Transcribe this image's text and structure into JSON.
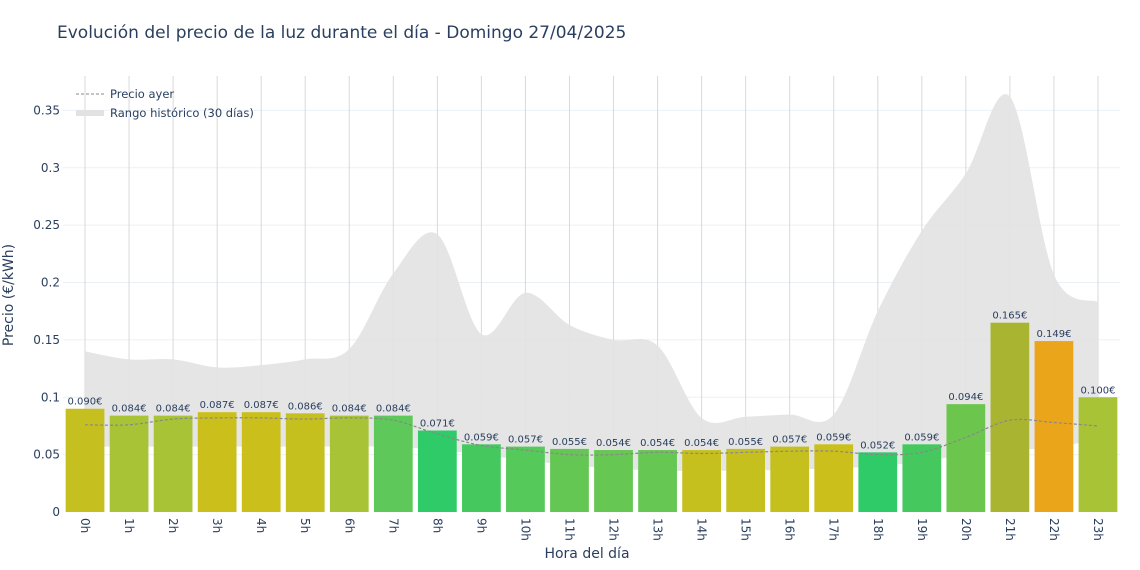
{
  "chart_data": {
    "type": "bar",
    "title": "Evolución del precio de la luz durante el día - Domingo 27/04/2025",
    "xlabel": "Hora del día",
    "ylabel": "Precio (€/kWh)",
    "ylim": [
      0,
      0.38
    ],
    "yticks": [
      0,
      0.05,
      0.1,
      0.15,
      0.2,
      0.25,
      0.3,
      0.35
    ],
    "ytick_labels": [
      "0",
      "0.05",
      "0.1",
      "0.15",
      "0.2",
      "0.25",
      "0.3",
      "0.35"
    ],
    "grid": true,
    "legend_position": "top-left",
    "categories": [
      "0h",
      "1h",
      "2h",
      "3h",
      "4h",
      "5h",
      "6h",
      "7h",
      "8h",
      "9h",
      "10h",
      "11h",
      "12h",
      "13h",
      "14h",
      "15h",
      "16h",
      "17h",
      "18h",
      "19h",
      "20h",
      "21h",
      "22h",
      "23h"
    ],
    "values": [
      0.09,
      0.084,
      0.084,
      0.087,
      0.087,
      0.086,
      0.084,
      0.084,
      0.071,
      0.059,
      0.057,
      0.055,
      0.054,
      0.054,
      0.054,
      0.055,
      0.057,
      0.059,
      0.052,
      0.059,
      0.094,
      0.165,
      0.149,
      0.1
    ],
    "value_labels": [
      "0.090€",
      "0.084€",
      "0.084€",
      "0.087€",
      "0.087€",
      "0.086€",
      "0.084€",
      "0.084€",
      "0.071€",
      "0.059€",
      "0.057€",
      "0.055€",
      "0.054€",
      "0.054€",
      "0.054€",
      "0.055€",
      "0.057€",
      "0.059€",
      "0.052€",
      "0.059€",
      "0.094€",
      "0.165€",
      "0.149€",
      "0.100€"
    ],
    "bar_colors": [
      "#c5c01f",
      "#a9c336",
      "#a9c336",
      "#cbbf1b",
      "#cbbf1b",
      "#c6c01f",
      "#a9c336",
      "#5ec95a",
      "#2fcb68",
      "#45c95f",
      "#55c959",
      "#64c753",
      "#66c752",
      "#66c752",
      "#c6c01f",
      "#c6c01f",
      "#c6c01f",
      "#cbbf1b",
      "#2fcb68",
      "#45c95f",
      "#6cc64e",
      "#a9b530",
      "#eba51b",
      "#a9c336"
    ],
    "series": [
      {
        "name": "Precio ayer",
        "style": "dashed",
        "color": "#888888",
        "values": [
          0.076,
          0.076,
          0.081,
          0.082,
          0.082,
          0.081,
          0.082,
          0.08,
          0.068,
          0.058,
          0.054,
          0.05,
          0.05,
          0.052,
          0.051,
          0.052,
          0.053,
          0.053,
          0.05,
          0.052,
          0.065,
          0.08,
          0.078,
          0.075
        ]
      },
      {
        "name": "Rango histórico (30 días)",
        "style": "band",
        "color": "#e2e2e2",
        "upper": [
          0.14,
          0.133,
          0.133,
          0.126,
          0.128,
          0.133,
          0.142,
          0.208,
          0.242,
          0.155,
          0.191,
          0.163,
          0.15,
          0.145,
          0.082,
          0.083,
          0.085,
          0.085,
          0.175,
          0.245,
          0.295,
          0.362,
          0.207,
          0.183
        ],
        "lower": [
          0.057,
          0.057,
          0.057,
          0.057,
          0.057,
          0.057,
          0.057,
          0.057,
          0.054,
          0.05,
          0.045,
          0.041,
          0.038,
          0.036,
          0.036,
          0.036,
          0.037,
          0.038,
          0.04,
          0.044,
          0.05,
          0.054,
          0.056,
          0.064
        ]
      }
    ]
  }
}
